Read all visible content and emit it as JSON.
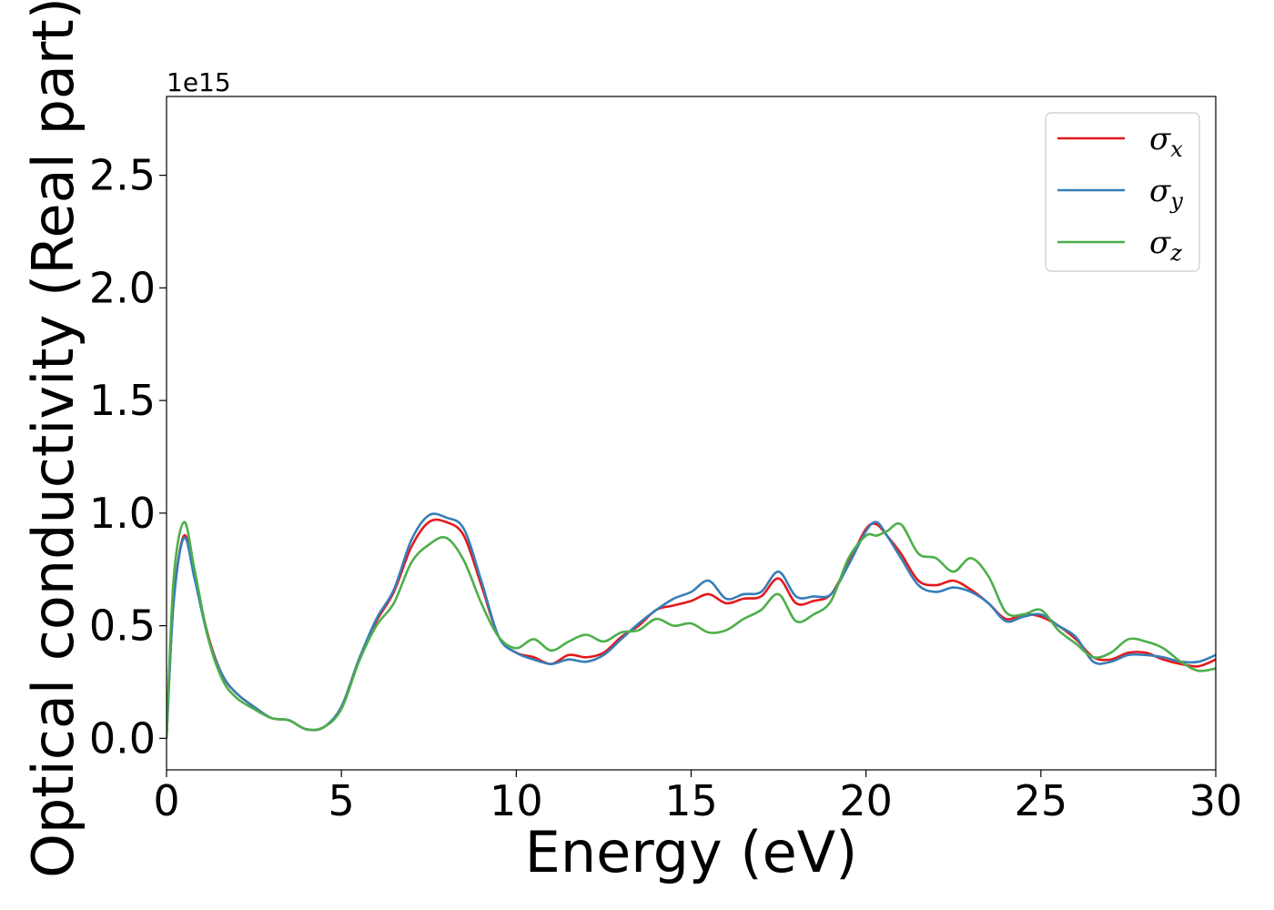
{
  "chart_data": {
    "type": "line",
    "xlabel": "Energy (eV)",
    "ylabel": "Optical conductivity (Real part)",
    "offset_text": "1e15",
    "xlim": [
      0,
      30
    ],
    "ylim": [
      -0.14,
      2.85
    ],
    "xticks": [
      0,
      5,
      10,
      15,
      20,
      25,
      30
    ],
    "xtick_labels": [
      "0",
      "5",
      "10",
      "15",
      "20",
      "25",
      "30"
    ],
    "yticks": [
      0.0,
      0.5,
      1.0,
      1.5,
      2.0,
      2.5
    ],
    "ytick_labels": [
      "0.0",
      "0.5",
      "1.0",
      "1.5",
      "2.0",
      "2.5"
    ],
    "grid": false,
    "legend_position": "top-right",
    "x": [
      0.0,
      0.2,
      0.5,
      0.8,
      1.2,
      1.6,
      2.0,
      2.5,
      3.0,
      3.5,
      4.0,
      4.5,
      5.0,
      5.5,
      6.0,
      6.5,
      7.0,
      7.5,
      8.0,
      8.5,
      9.0,
      9.5,
      10.0,
      10.5,
      11.0,
      11.5,
      12.0,
      12.5,
      13.0,
      13.5,
      14.0,
      14.5,
      15.0,
      15.5,
      16.0,
      16.5,
      17.0,
      17.5,
      18.0,
      18.5,
      19.0,
      19.5,
      20.0,
      20.3,
      20.6,
      21.0,
      21.5,
      22.0,
      22.5,
      23.0,
      23.5,
      24.0,
      24.5,
      25.0,
      25.5,
      26.0,
      26.5,
      27.0,
      27.5,
      28.0,
      28.5,
      29.0,
      29.5,
      30.0
    ],
    "series": [
      {
        "name": "σx",
        "color": "#e41a1c",
        "values": [
          0.0,
          0.6,
          0.9,
          0.72,
          0.45,
          0.28,
          0.2,
          0.14,
          0.09,
          0.08,
          0.04,
          0.05,
          0.14,
          0.35,
          0.52,
          0.65,
          0.85,
          0.96,
          0.96,
          0.9,
          0.68,
          0.45,
          0.38,
          0.36,
          0.33,
          0.37,
          0.36,
          0.38,
          0.45,
          0.5,
          0.57,
          0.59,
          0.61,
          0.64,
          0.6,
          0.62,
          0.63,
          0.71,
          0.6,
          0.61,
          0.64,
          0.78,
          0.93,
          0.95,
          0.9,
          0.82,
          0.7,
          0.68,
          0.7,
          0.66,
          0.6,
          0.53,
          0.55,
          0.54,
          0.5,
          0.44,
          0.36,
          0.35,
          0.38,
          0.38,
          0.35,
          0.33,
          0.32,
          0.35
        ]
      },
      {
        "name": "σy",
        "color": "#377eb8",
        "values": [
          0.0,
          0.6,
          0.89,
          0.71,
          0.44,
          0.28,
          0.2,
          0.14,
          0.09,
          0.08,
          0.04,
          0.05,
          0.14,
          0.35,
          0.53,
          0.66,
          0.88,
          0.99,
          0.98,
          0.93,
          0.7,
          0.45,
          0.38,
          0.35,
          0.33,
          0.35,
          0.34,
          0.37,
          0.44,
          0.51,
          0.57,
          0.62,
          0.65,
          0.7,
          0.62,
          0.64,
          0.65,
          0.74,
          0.63,
          0.63,
          0.64,
          0.77,
          0.92,
          0.96,
          0.9,
          0.8,
          0.68,
          0.65,
          0.67,
          0.65,
          0.6,
          0.52,
          0.54,
          0.55,
          0.5,
          0.45,
          0.34,
          0.34,
          0.37,
          0.37,
          0.36,
          0.34,
          0.34,
          0.37
        ]
      },
      {
        "name": "σz",
        "color": "#4daf4a",
        "values": [
          0.0,
          0.7,
          0.96,
          0.75,
          0.44,
          0.26,
          0.18,
          0.13,
          0.09,
          0.08,
          0.04,
          0.05,
          0.13,
          0.34,
          0.5,
          0.6,
          0.78,
          0.86,
          0.89,
          0.79,
          0.6,
          0.45,
          0.4,
          0.44,
          0.39,
          0.43,
          0.46,
          0.43,
          0.47,
          0.48,
          0.53,
          0.5,
          0.51,
          0.47,
          0.48,
          0.53,
          0.57,
          0.64,
          0.52,
          0.55,
          0.61,
          0.8,
          0.9,
          0.9,
          0.92,
          0.95,
          0.82,
          0.8,
          0.74,
          0.8,
          0.72,
          0.56,
          0.55,
          0.57,
          0.48,
          0.42,
          0.36,
          0.38,
          0.44,
          0.43,
          0.4,
          0.34,
          0.3,
          0.31
        ]
      }
    ]
  }
}
